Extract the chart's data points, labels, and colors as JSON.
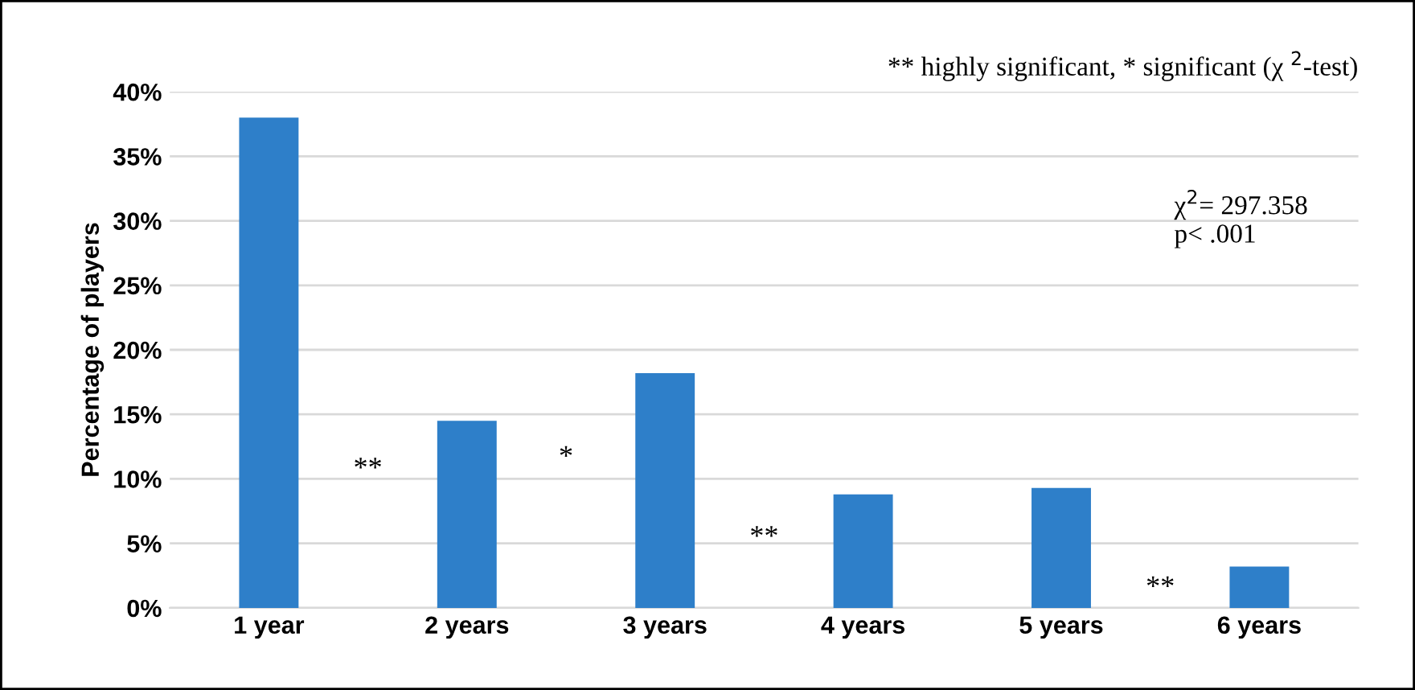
{
  "chart_data": {
    "type": "bar",
    "ylabel": "Percentage of players",
    "categories": [
      "1 year",
      "2 years",
      "3 years",
      "4 years",
      "5 years",
      "6 years"
    ],
    "values": [
      38.0,
      14.5,
      18.2,
      8.8,
      9.3,
      3.2
    ],
    "color": "#2e7fc9",
    "ylim": [
      0,
      40
    ],
    "yticks": [
      {
        "value": 0,
        "label": "0%"
      },
      {
        "value": 5,
        "label": "5%"
      },
      {
        "value": 10,
        "label": "10%"
      },
      {
        "value": 15,
        "label": "15%"
      },
      {
        "value": 20,
        "label": "20%"
      },
      {
        "value": 25,
        "label": "25%"
      },
      {
        "value": 30,
        "label": "30%"
      },
      {
        "value": 35,
        "label": "35%"
      },
      {
        "value": 40,
        "label": "40%"
      }
    ],
    "grid": "y",
    "annotations": [
      "** highly significant, * significant (χ $^{2}$-test)",
      "χ$^{2}$= 297.358\np< .001",
      "**",
      "*",
      "**",
      "**"
    ]
  }
}
